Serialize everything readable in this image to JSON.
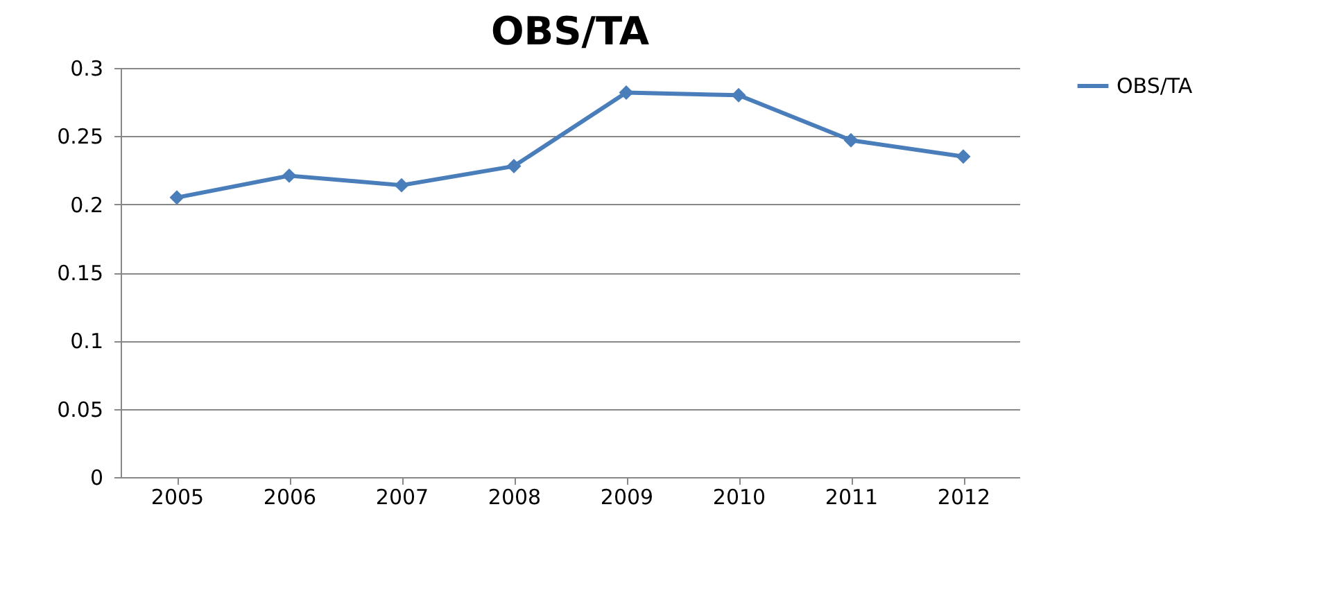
{
  "chart_data": {
    "type": "line",
    "title": "OBS/TA",
    "categories": [
      "2005",
      "2006",
      "2007",
      "2008",
      "2009",
      "2010",
      "2011",
      "2012"
    ],
    "series": [
      {
        "name": "OBS/TA",
        "color": "#4a7ebb",
        "values": [
          0.205,
          0.221,
          0.214,
          0.228,
          0.282,
          0.28,
          0.247,
          0.235
        ]
      }
    ],
    "ylim": [
      0,
      0.3
    ],
    "yticks": [
      0,
      0.05,
      0.1,
      0.15,
      0.2,
      0.25,
      0.3
    ],
    "grid": "y",
    "legend": "right",
    "marker": "diamond",
    "line_style": "solid"
  }
}
